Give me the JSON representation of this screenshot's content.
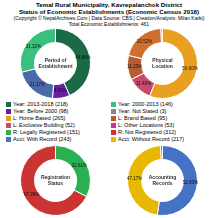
{
  "title": [
    "Temal Rural Municipality, Kavrepalanchok District",
    "Status of Economic Establishments (Economic Census 2018)"
  ],
  "subtitle": [
    "(Copyright © NepalArchives.Com | Data Source: CBS | Creation/Analysis: Milan Karki)",
    "Total Economic Establishments: 461"
  ],
  "legend_items": [
    {
      "label": "Year: 2013-2018 (218)",
      "color": "#1a6b45"
    },
    {
      "label": "Year: 2000-2013 (146)",
      "color": "#3abf7f"
    },
    {
      "label": "Year: Before 2000 (98)",
      "color": "#6a1fa0"
    },
    {
      "label": "Year: Not Stated (3)",
      "color": "#888888"
    },
    {
      "label": "L: Home Based (265)",
      "color": "#e8a020"
    },
    {
      "label": "L: Brand Based (95)",
      "color": "#b85c30"
    },
    {
      "label": "L: Exclusive Building (52)",
      "color": "#c84b6e"
    },
    {
      "label": "L: Other Locations (53)",
      "color": "#cc3399"
    },
    {
      "label": "R: Legally Registered (151)",
      "color": "#2ab050"
    },
    {
      "label": "R: Not Registered (312)",
      "color": "#cc3333"
    },
    {
      "label": "Acct: With Record (243)",
      "color": "#4472c4"
    },
    {
      "label": "Acct: Without Record (217)",
      "color": "#e8b800"
    }
  ],
  "chart_data": [
    {
      "type": "doughnut",
      "title": "Period of\nEstablishment",
      "values": [
        46.86,
        8.65,
        21.17,
        31.32
      ],
      "colors": [
        "#1a6b45",
        "#6a1fa0",
        "#4a6aaa",
        "#3abf7f"
      ],
      "data_labels": true,
      "value_labels": [
        "46.86%",
        "8.65%",
        "21.17%",
        "31.32%"
      ]
    },
    {
      "type": "doughnut",
      "title": "Physical\nLocation",
      "values": [
        56.0,
        11.49,
        11.23,
        20.52,
        0.76
      ],
      "colors": [
        "#e8a020",
        "#c84b6e",
        "#b85c30",
        "#d07030",
        "#d4a000"
      ],
      "data_labels": true,
      "value_labels": [
        "56.00%",
        "11.49%",
        "11.23%",
        "20.52%",
        null
      ]
    },
    {
      "type": "doughnut",
      "title": "Registration\nStatus",
      "values": [
        32.61,
        67.39
      ],
      "colors": [
        "#2ab050",
        "#cc3333"
      ],
      "data_labels": true,
      "value_labels": [
        "32.61%",
        "67.39%"
      ]
    },
    {
      "type": "doughnut",
      "title": "Accounting\nRecords",
      "values": [
        52.93,
        47.17,
        0.9
      ],
      "colors": [
        "#4472c4",
        "#e8b800",
        "#c0504d"
      ],
      "data_labels": true,
      "value_labels": [
        "52.93%",
        "47.17%",
        null
      ]
    }
  ]
}
